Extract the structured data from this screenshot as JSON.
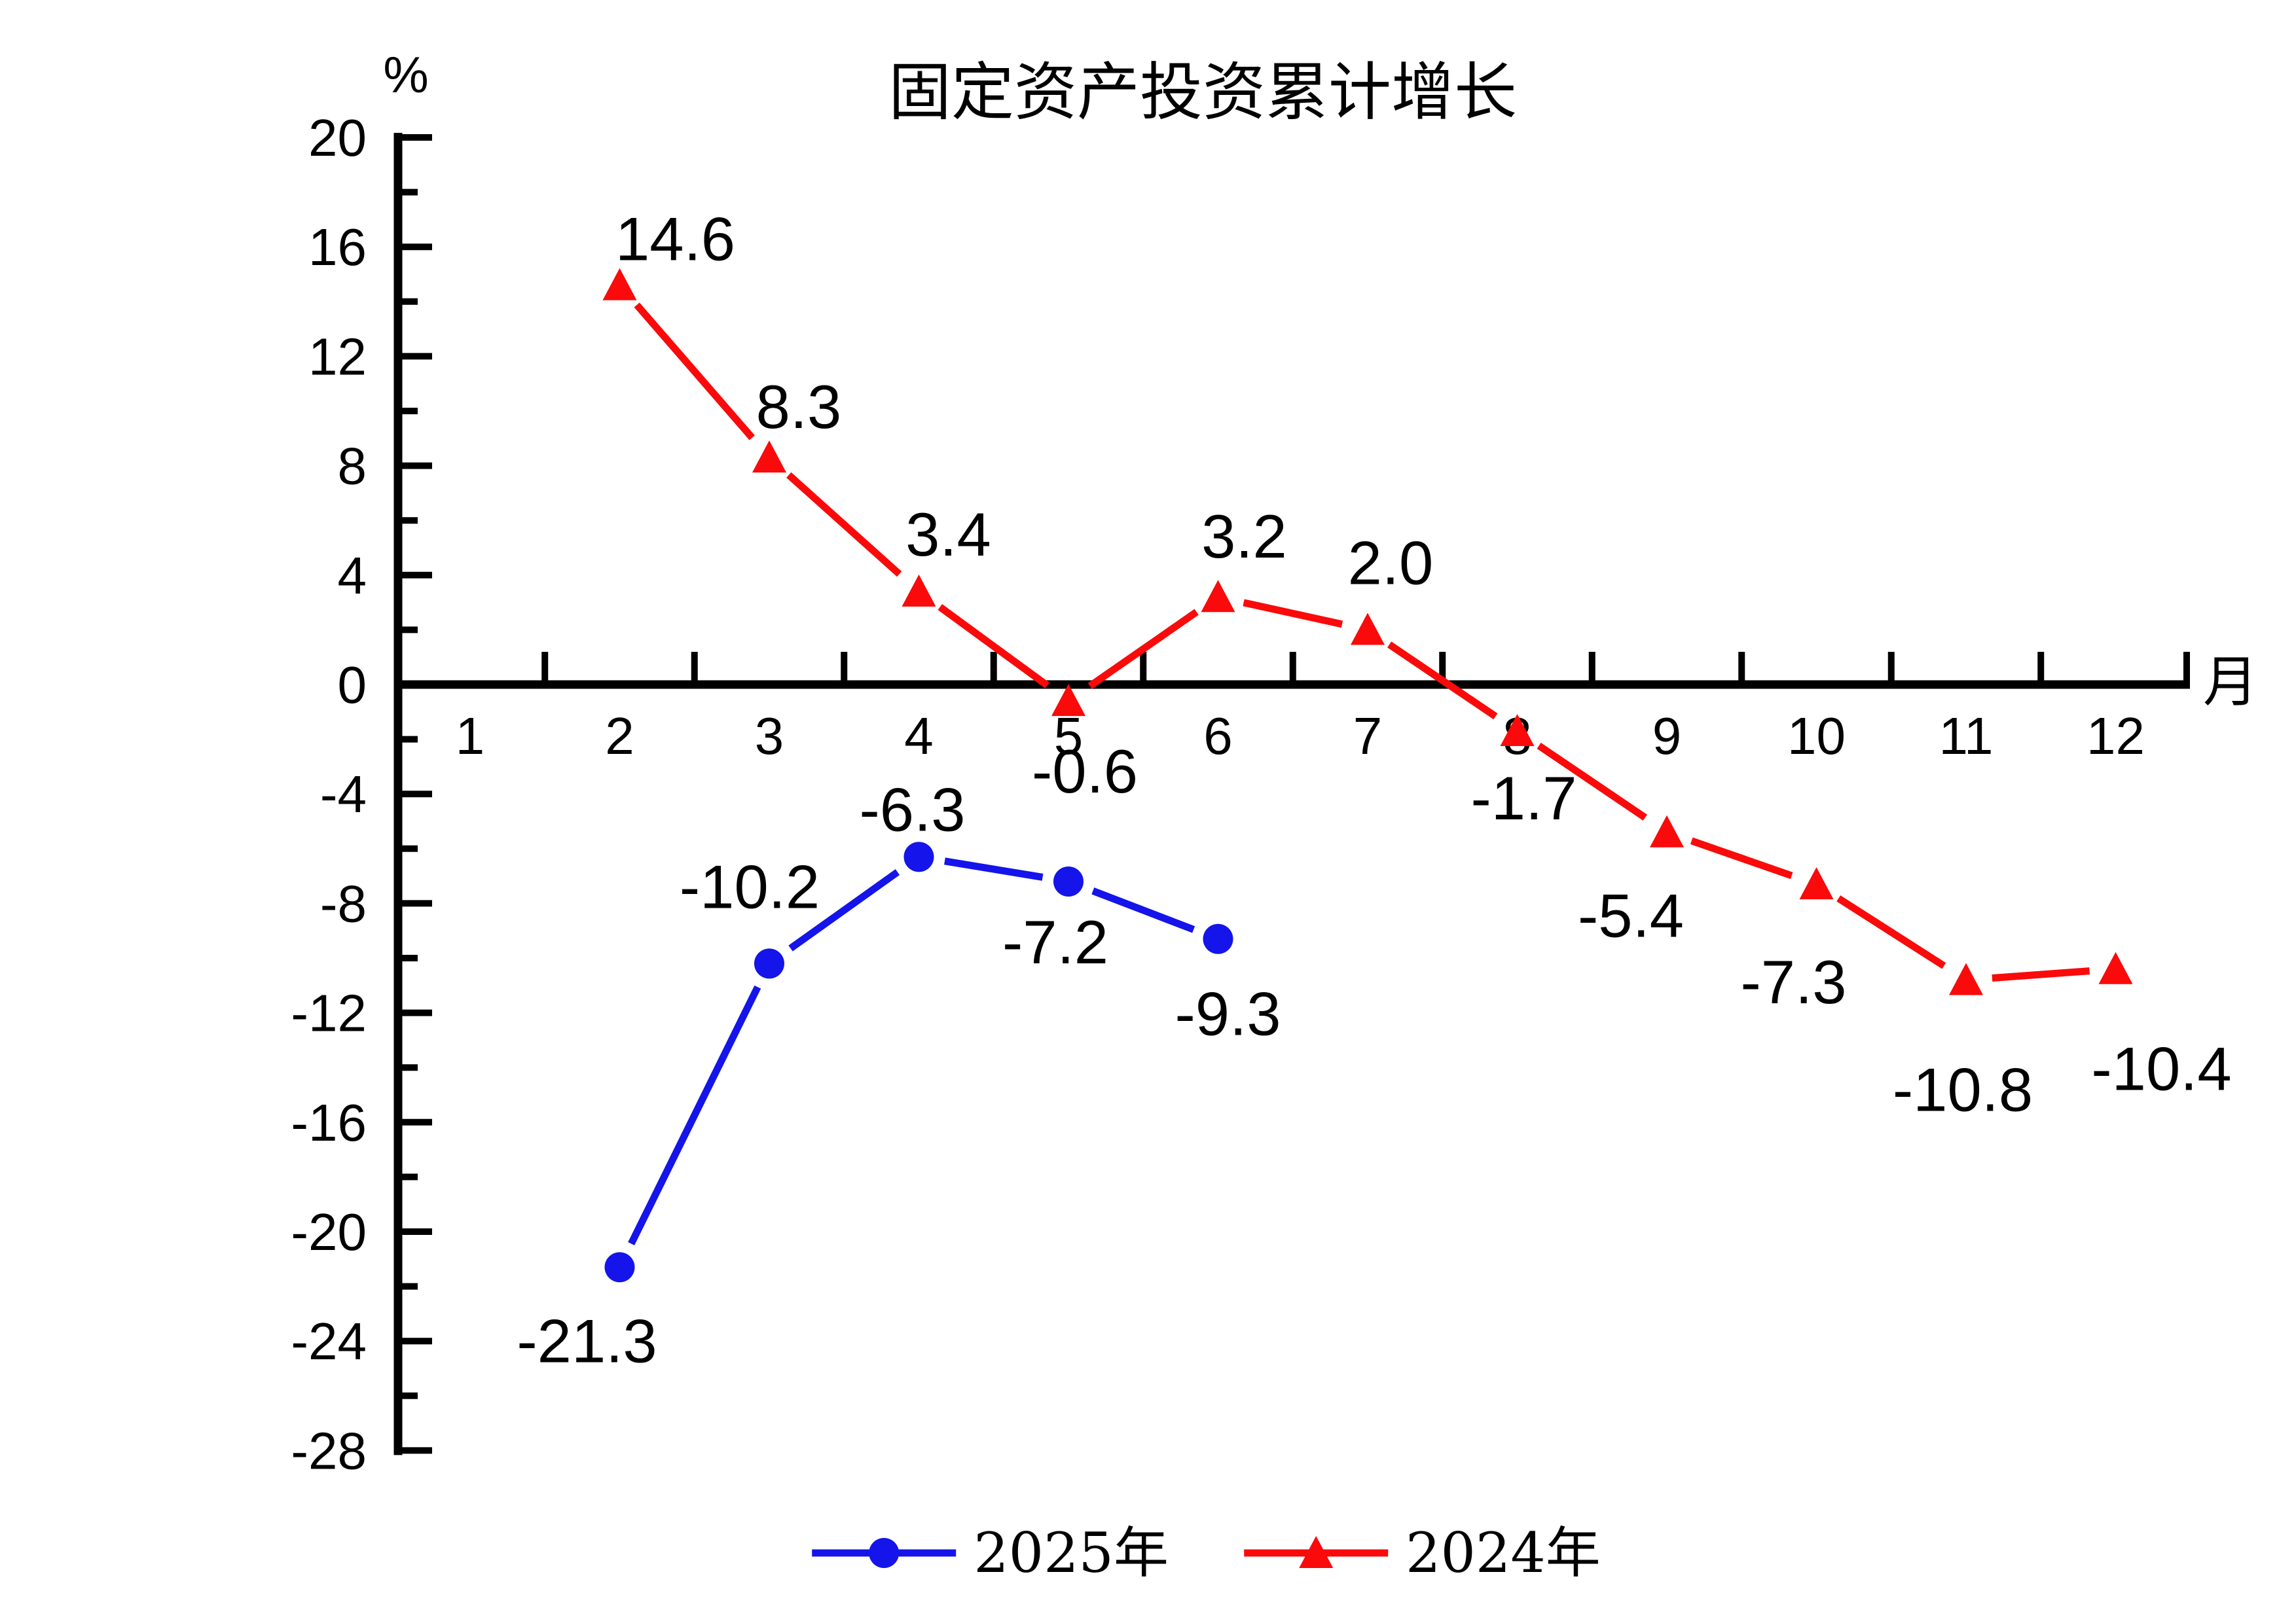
{
  "title": "固定资产投资累计增长",
  "axes": {
    "y_unit": "%",
    "x_unit": "月"
  },
  "colors": {
    "axis": "#000000",
    "text": "#000000",
    "series_2025": "#1414EB",
    "series_2024": "#FA0A0A",
    "background": "#FFFFFF"
  },
  "chart_data": {
    "type": "line",
    "title": "固定资产投资累计增长",
    "xlabel": "月",
    "ylabel": "%",
    "grid": false,
    "legend_position": "bottom-center",
    "ylim": [
      -28,
      20
    ],
    "y_major_step": 4,
    "y_minor_step": 2,
    "y_ticks": [
      {
        "value": 20,
        "label": "20"
      },
      {
        "value": 16,
        "label": "16"
      },
      {
        "value": 12,
        "label": "12"
      },
      {
        "value": 8,
        "label": "8"
      },
      {
        "value": 4,
        "label": "4"
      },
      {
        "value": 0,
        "label": "0"
      },
      {
        "value": -4,
        "label": "-4"
      },
      {
        "value": -8,
        "label": "-8"
      },
      {
        "value": -12,
        "label": "-12"
      },
      {
        "value": -16,
        "label": "-16"
      },
      {
        "value": -20,
        "label": "-20"
      },
      {
        "value": -24,
        "label": "-24"
      },
      {
        "value": -28,
        "label": "-28"
      }
    ],
    "x_ticks": [
      {
        "value": 1,
        "label": "1"
      },
      {
        "value": 2,
        "label": "2"
      },
      {
        "value": 3,
        "label": "3"
      },
      {
        "value": 4,
        "label": "4"
      },
      {
        "value": 5,
        "label": "5"
      },
      {
        "value": 6,
        "label": "6"
      },
      {
        "value": 7,
        "label": "7"
      },
      {
        "value": 8,
        "label": "8"
      },
      {
        "value": 9,
        "label": "9"
      },
      {
        "value": 10,
        "label": "10"
      },
      {
        "value": 11,
        "label": "11"
      },
      {
        "value": 12,
        "label": "12"
      }
    ],
    "series": [
      {
        "name": "2025年",
        "color": "#1414EB",
        "marker": "circle",
        "points": [
          {
            "x": 2,
            "y": -21.3,
            "label": "-21.3",
            "label_dx": -50,
            "label_dy": 145
          },
          {
            "x": 3,
            "y": -10.2,
            "label": "-10.2",
            "label_dx": -30,
            "label_dy": -85
          },
          {
            "x": 4,
            "y": -6.3,
            "label": "-6.3",
            "label_dx": -10,
            "label_dy": -40
          },
          {
            "x": 5,
            "y": -7.2,
            "label": "-7.2",
            "label_dx": -20,
            "label_dy": 125
          },
          {
            "x": 6,
            "y": -9.3,
            "label": "-9.3",
            "label_dx": 15,
            "label_dy": 147
          }
        ]
      },
      {
        "name": "2024年",
        "color": "#FA0A0A",
        "marker": "triangle",
        "points": [
          {
            "x": 2,
            "y": 14.6,
            "label": "14.6",
            "label_dx": 85,
            "label_dy": -38
          },
          {
            "x": 3,
            "y": 8.3,
            "label": "8.3",
            "label_dx": 45,
            "label_dy": -45
          },
          {
            "x": 4,
            "y": 3.4,
            "label": "3.4",
            "label_dx": 45,
            "label_dy": -55
          },
          {
            "x": 5,
            "y": -0.6,
            "label": "-0.6",
            "label_dx": 25,
            "label_dy": 140
          },
          {
            "x": 6,
            "y": 3.2,
            "label": "3.2",
            "label_dx": 40,
            "label_dy": -60
          },
          {
            "x": 7,
            "y": 2.0,
            "label": "2.0",
            "label_dx": 35,
            "label_dy": -70
          },
          {
            "x": 8,
            "y": -1.7,
            "label": "-1.7",
            "label_dx": 10,
            "label_dy": 135
          },
          {
            "x": 9,
            "y": -5.4,
            "label": "-5.4",
            "label_dx": -55,
            "label_dy": 160
          },
          {
            "x": 10,
            "y": -7.3,
            "label": "-7.3",
            "label_dx": -35,
            "label_dy": 182
          },
          {
            "x": 11,
            "y": -10.8,
            "label": "-10.8",
            "label_dx": -5,
            "label_dy": 200
          },
          {
            "x": 12,
            "y": -10.4,
            "label": "-10.4",
            "label_dx": 70,
            "label_dy": 185
          }
        ]
      }
    ],
    "legend": [
      "2025年",
      "2024年"
    ]
  }
}
